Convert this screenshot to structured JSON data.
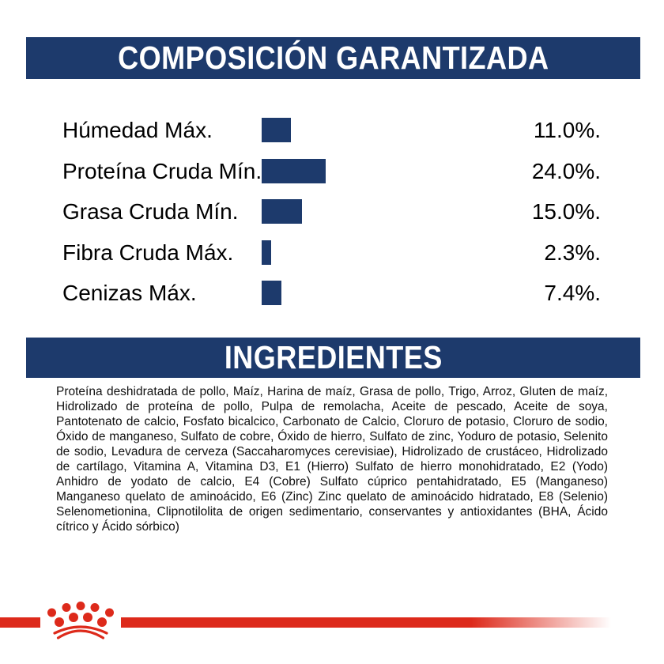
{
  "banners": {
    "composition": "COMPOSICIÓN GARANTIZADA",
    "ingredients": "INGREDIENTES"
  },
  "chart_data": {
    "type": "bar",
    "orientation": "horizontal",
    "title": "COMPOSICIÓN GARANTIZADA",
    "categories": [
      "Húmedad Máx.",
      "Proteína Cruda Mín.",
      "Grasa Cruda Mín.",
      "Fibra Cruda Máx.",
      "Cenizas Máx."
    ],
    "values": [
      11.0,
      24.0,
      15.0,
      2.3,
      7.4
    ],
    "value_labels": [
      "11.0%.",
      "24.0%.",
      "15.0%.",
      "2.3%.",
      "7.4%."
    ],
    "unit": "%",
    "axis_range": [
      0,
      24
    ],
    "grid": false,
    "legend": false,
    "bar_color": "#1d3a6c"
  },
  "ingredients": {
    "text": "Proteína deshidratada de pollo, Maíz, Harina de maíz, Grasa de pollo, Trigo, Arroz, Gluten de maíz, Hidrolizado de proteína de pollo, Pulpa de remolacha, Aceite de pescado, Aceite de soya, Pantotenato de calcio, Fosfato bicalcico, Carbonato de Calcio, Cloruro de potasio, Cloruro de sodio, Óxido de manganeso, Sulfato de cobre, Óxido de hierro, Sulfato de zinc, Yoduro de potasio, Selenito de sodio, Levadura de cerveza (Saccaharomyces cerevisiae), Hidrolizado de crustáceo, Hidrolizado de cartílago, Vitamina A, Vitamina D3, E1 (Hierro) Sulfato de hierro monohidratado, E2 (Yodo) Anhidro de yodato de calcio, E4 (Cobre) Sulfato cúprico pentahidratado, E5 (Manganeso) Manganeso quelato de aminoácido, E6 (Zinc) Zinc quelato de aminoácido hidratado, E8 (Selenio) Selenometionina, Clipnotilolita de origen sedimentario, conservantes y antioxidantes (BHA, Ácido cítrico y Ácido sórbico)"
  },
  "footer": {
    "logo": "royal-canin-crown-icon"
  },
  "colors": {
    "navy": "#1d3a6c",
    "red": "#dd2a1b"
  }
}
